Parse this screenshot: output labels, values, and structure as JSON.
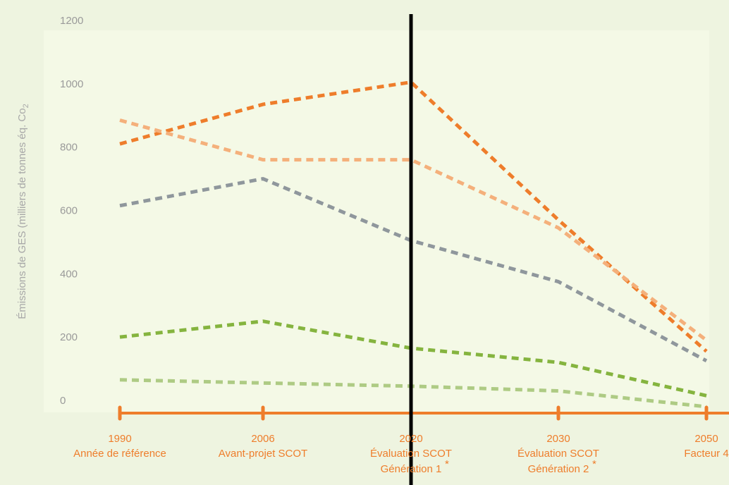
{
  "chart_data": {
    "type": "line",
    "ylabel": "Émissions de GES (milliers de tonnes éq. Co",
    "ylabel_subscript": "2",
    "ylim": [
      0,
      1200
    ],
    "yticks": [
      0,
      200,
      400,
      600,
      800,
      1000,
      1200
    ],
    "categories": [
      {
        "year": "1990",
        "label1": "Année de référence",
        "label2": ""
      },
      {
        "year": "2006",
        "label1": "Avant-projet SCOT",
        "label2": ""
      },
      {
        "year": "2020",
        "label1": "Évaluation SCOT",
        "label2": "Génération 1"
      },
      {
        "year": "2030",
        "label1": "Évaluation SCOT",
        "label2": "Génération 2"
      },
      {
        "year": "2050",
        "label1": "Facteur 4",
        "label2": ""
      }
    ],
    "x": [
      1990,
      2006,
      2020,
      2030,
      2050
    ],
    "series": [
      {
        "values": [
          810,
          935,
          1005,
          570,
          155
        ],
        "color": "#ee7d2b"
      },
      {
        "values": [
          885,
          760,
          760,
          545,
          190
        ],
        "color": "#f4b07b"
      },
      {
        "values": [
          615,
          700,
          505,
          375,
          125
        ],
        "color": "#8f979c"
      },
      {
        "values": [
          200,
          250,
          165,
          120,
          15
        ],
        "color": "#85b43f"
      },
      {
        "values": [
          65,
          55,
          45,
          30,
          -20
        ],
        "color": "#aecb84"
      }
    ],
    "vline_x": 2020,
    "colors": {
      "panel": "#eef4e0",
      "plot": "#f4f9e6",
      "axis": "#ee7d2b",
      "marker": "#000000"
    }
  }
}
